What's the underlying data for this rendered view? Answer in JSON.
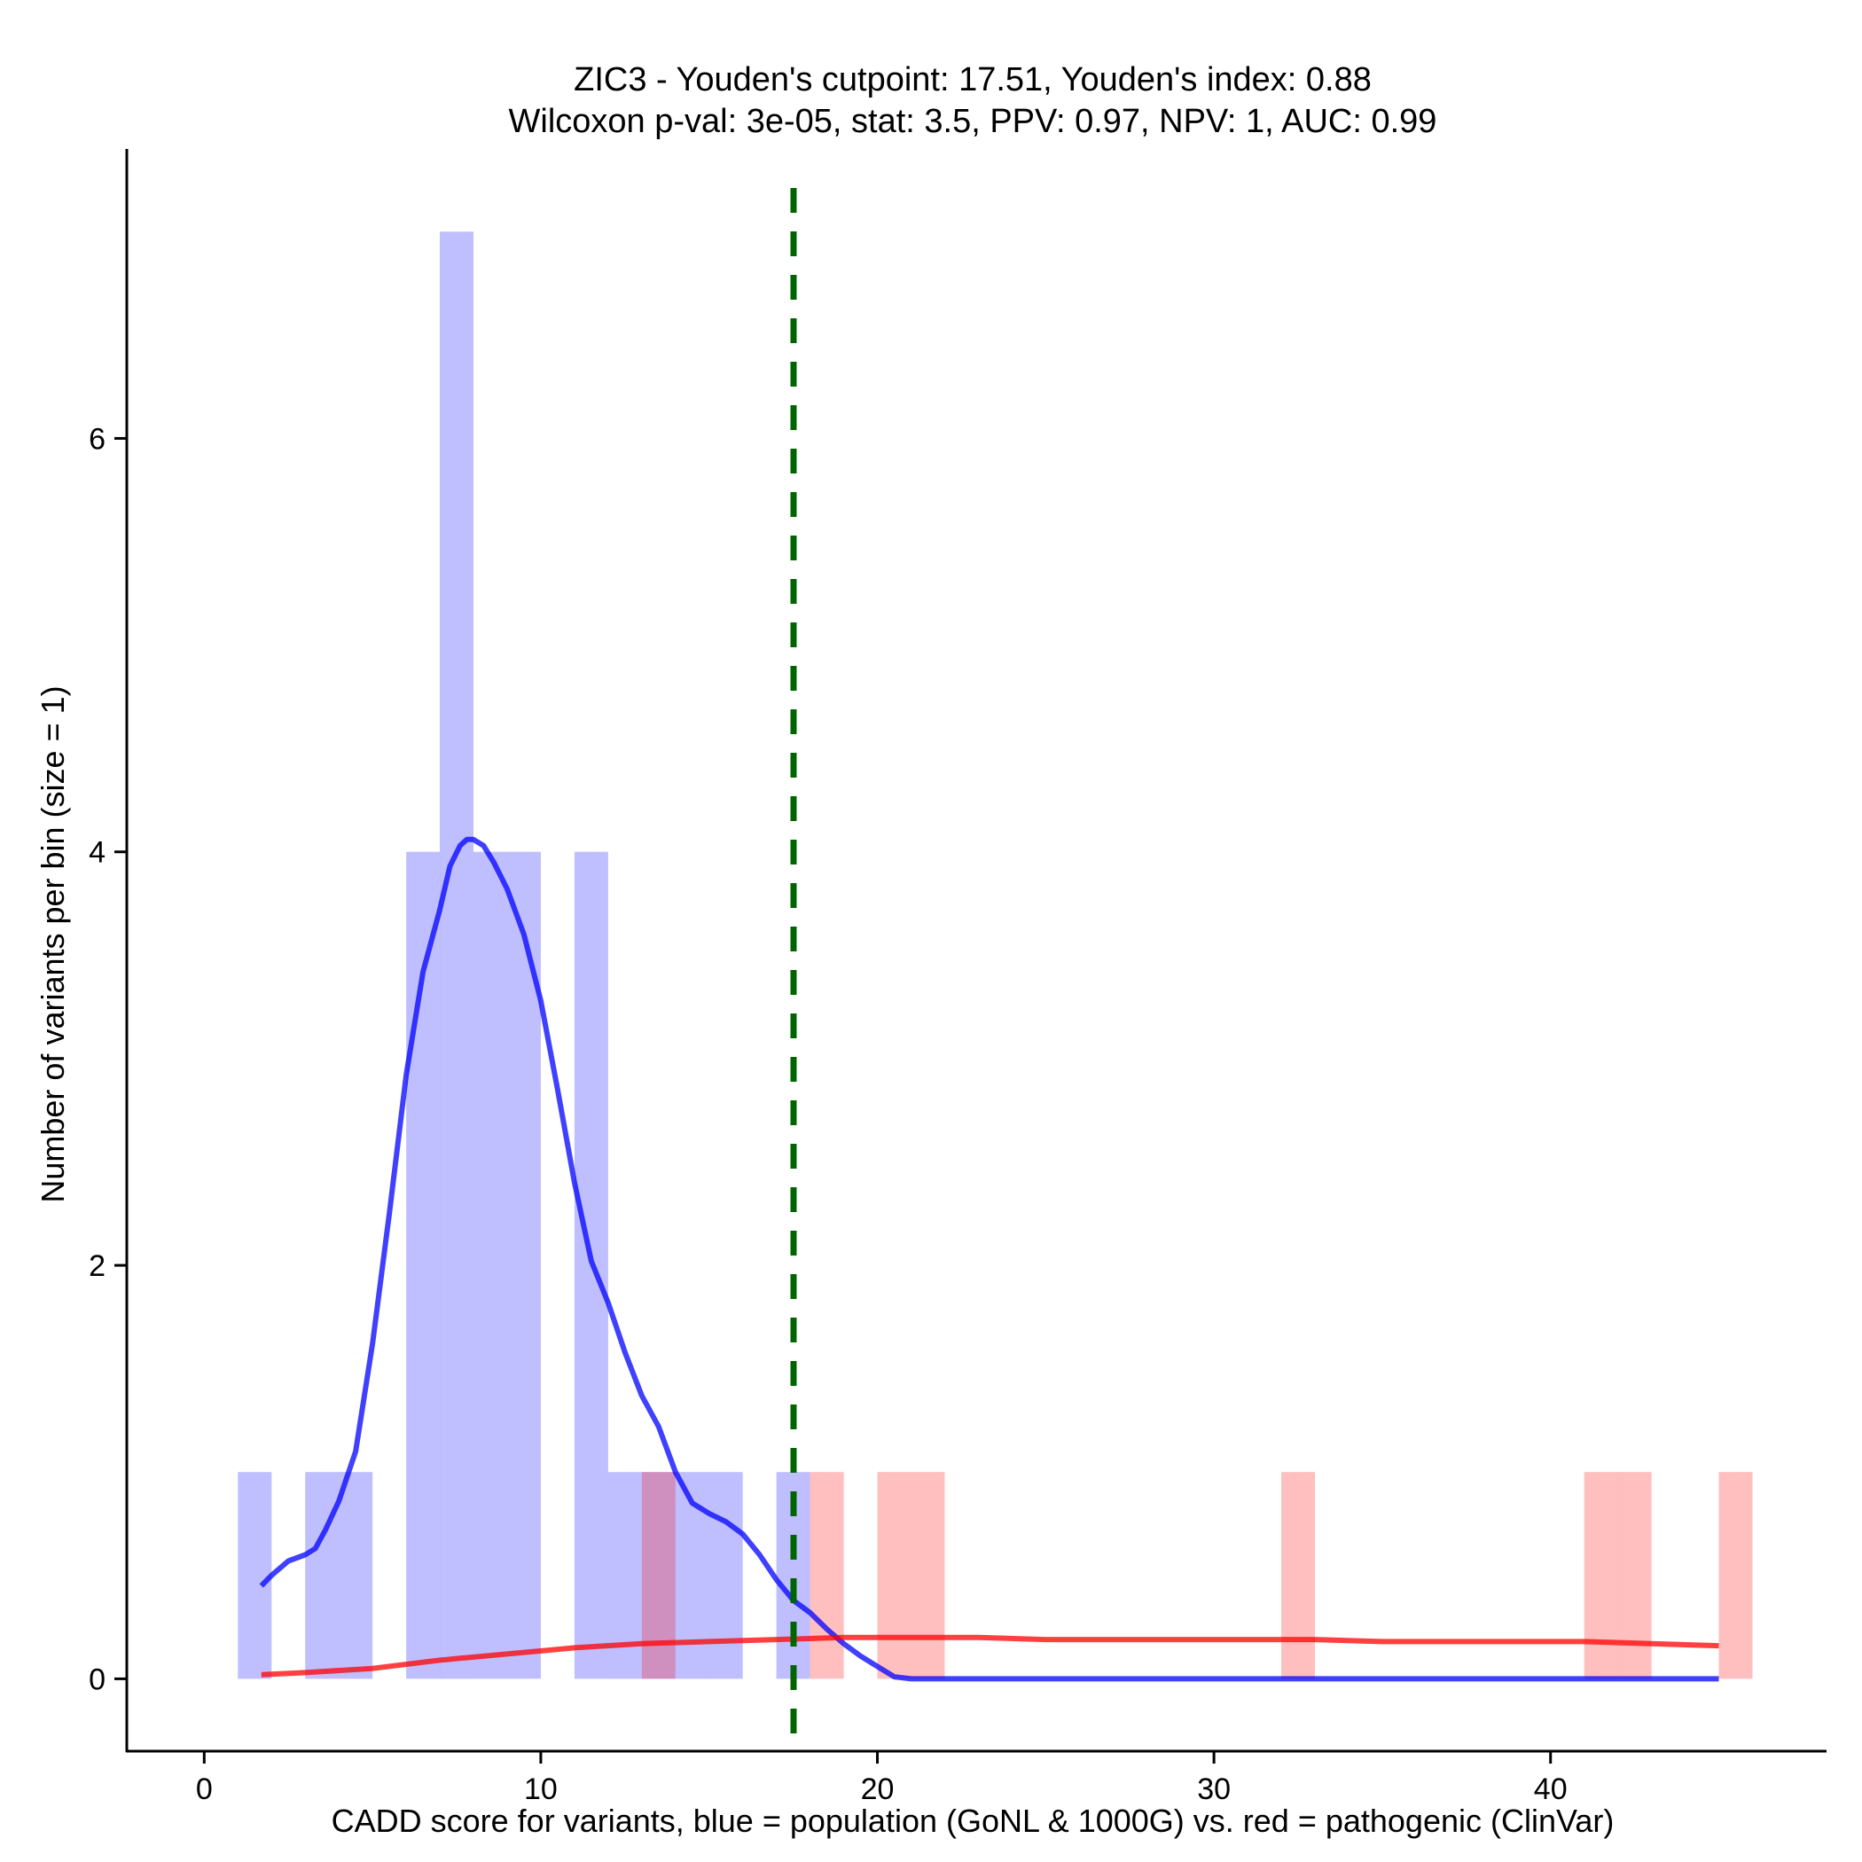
{
  "chart_data": {
    "type": "bar",
    "title": "ZIC3 - Youden's cutpoint: 17.51, Youden's index: 0.88",
    "subtitle": "Wilcoxon p-val: 3e-05, stat: 3.5, PPV: 0.97, NPV: 1, AUC: 0.99",
    "xlabel": "CADD score for variants, blue = population (GoNL & 1000G) vs. red = pathogenic (ClinVar)",
    "ylabel": "Number of variants per bin (size = 1)",
    "xlim": [
      -2.3,
      48.2
    ],
    "ylim": [
      -0.35,
      7.4
    ],
    "xticks": [
      0,
      10,
      20,
      30,
      40
    ],
    "yticks": [
      0,
      2,
      4,
      6
    ],
    "grid": false,
    "cutpoint": 17.51,
    "histograms": [
      {
        "group": "population",
        "color": "#0000ff",
        "bin_width": 1,
        "bins": [
          {
            "x": 1,
            "count": 1
          },
          {
            "x": 3,
            "count": 1
          },
          {
            "x": 4,
            "count": 1
          },
          {
            "x": 6,
            "count": 4
          },
          {
            "x": 7,
            "count": 7
          },
          {
            "x": 8,
            "count": 4
          },
          {
            "x": 9,
            "count": 4
          },
          {
            "x": 11,
            "count": 4
          },
          {
            "x": 12,
            "count": 1
          },
          {
            "x": 13,
            "count": 1
          },
          {
            "x": 14,
            "count": 1
          },
          {
            "x": 15,
            "count": 1
          },
          {
            "x": 17,
            "count": 1
          }
        ]
      },
      {
        "group": "pathogenic",
        "color": "#ff0000",
        "bin_width": 1,
        "bins": [
          {
            "x": 13,
            "count": 1
          },
          {
            "x": 18,
            "count": 1
          },
          {
            "x": 20,
            "count": 1
          },
          {
            "x": 21,
            "count": 1
          },
          {
            "x": 32,
            "count": 1
          },
          {
            "x": 41,
            "count": 1
          },
          {
            "x": 42,
            "count": 1
          },
          {
            "x": 45,
            "count": 1
          }
        ]
      }
    ],
    "series": [
      {
        "group": "population",
        "color": "#0000ff",
        "x": [
          1.7,
          2,
          2.5,
          3,
          3.3,
          3.6,
          4,
          4.5,
          5,
          5.5,
          6,
          6.5,
          7,
          7.3,
          7.6,
          7.8,
          8,
          8.3,
          8.6,
          9,
          9.5,
          10,
          10.5,
          11,
          11.5,
          12,
          12.5,
          13,
          13.5,
          14,
          14.5,
          15,
          15.5,
          16,
          16.5,
          17,
          17.5,
          18,
          18.5,
          19,
          19.5,
          20,
          20.5,
          21,
          25,
          30,
          35,
          40,
          45
        ],
        "y": [
          0.45,
          0.5,
          0.57,
          0.6,
          0.63,
          0.72,
          0.86,
          1.1,
          1.62,
          2.25,
          2.92,
          3.42,
          3.72,
          3.93,
          4.03,
          4.06,
          4.06,
          4.03,
          3.95,
          3.82,
          3.6,
          3.28,
          2.85,
          2.4,
          2.02,
          1.82,
          1.58,
          1.37,
          1.22,
          1.0,
          0.85,
          0.8,
          0.76,
          0.7,
          0.6,
          0.48,
          0.38,
          0.32,
          0.24,
          0.17,
          0.11,
          0.06,
          0.01,
          0.0,
          0.0,
          0.0,
          0.0,
          0.0,
          0.0
        ]
      },
      {
        "group": "pathogenic",
        "color": "#ff0000",
        "x": [
          1.7,
          3,
          5,
          7,
          9,
          11,
          13,
          15,
          17,
          19,
          21,
          23,
          25,
          27,
          29,
          31,
          33,
          35,
          37,
          39,
          41,
          43,
          45
        ],
        "y": [
          0.02,
          0.03,
          0.05,
          0.09,
          0.12,
          0.15,
          0.17,
          0.18,
          0.19,
          0.2,
          0.2,
          0.2,
          0.19,
          0.19,
          0.19,
          0.19,
          0.19,
          0.18,
          0.18,
          0.18,
          0.18,
          0.17,
          0.16
        ]
      }
    ]
  }
}
